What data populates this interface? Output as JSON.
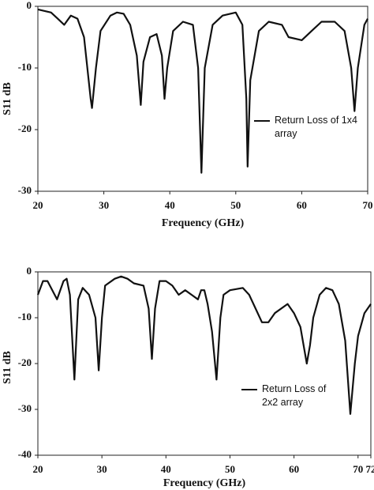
{
  "chart_data": [
    {
      "type": "line",
      "xlabel": "Frequency (GHz)",
      "ylabel": "S11 dB",
      "x": [
        20,
        22,
        23,
        24,
        25,
        26,
        27,
        28,
        28.2,
        28.8,
        29.5,
        31,
        32,
        33,
        34,
        35,
        35.6,
        36,
        37,
        38,
        38.8,
        39.2,
        39.6,
        40.5,
        42,
        43.5,
        44.3,
        44.8,
        45.3,
        46.5,
        48,
        50,
        51,
        51.6,
        51.8,
        52.2,
        53.5,
        55,
        57,
        58,
        60,
        61.5,
        63,
        65,
        66.5,
        67.5,
        68,
        68.5,
        69.5,
        70
      ],
      "series": [
        {
          "name": "Return Loss of 1x4 array",
          "color": "#111111",
          "values": [
            -0.5,
            -1,
            -2,
            -3,
            -1.5,
            -2,
            -5,
            -15,
            -16.5,
            -10,
            -4,
            -1.5,
            -1,
            -1.2,
            -3,
            -8,
            -16,
            -9,
            -5,
            -4.5,
            -8,
            -15,
            -10,
            -4,
            -2.5,
            -3,
            -10,
            -27,
            -10,
            -3,
            -1.5,
            -1,
            -3,
            -15,
            -26,
            -12,
            -4,
            -2.5,
            -3,
            -5,
            -5.5,
            -4,
            -2.5,
            -2.5,
            -4,
            -10,
            -17,
            -10,
            -3,
            -2
          ]
        }
      ],
      "xlim": [
        20,
        70
      ],
      "xticks": [
        20,
        30,
        40,
        50,
        60,
        70
      ],
      "ylim": [
        -30,
        0
      ],
      "yticks": [
        0,
        -10,
        -20,
        -30
      ]
    },
    {
      "type": "line",
      "xlabel": "Frequency (GHz)",
      "ylabel": "S11 dB",
      "x": [
        20,
        20.8,
        21.5,
        23,
        24,
        24.5,
        25,
        25.7,
        26.3,
        27,
        28,
        29,
        29.5,
        30,
        30.5,
        32,
        33,
        34,
        35,
        36.5,
        37.3,
        37.8,
        38.3,
        39,
        40,
        41,
        42,
        43,
        44,
        45,
        45.5,
        46,
        46.5,
        47.2,
        47.9,
        48.5,
        49,
        50,
        52,
        53,
        54,
        55,
        56,
        57,
        59,
        60,
        61,
        62,
        62.5,
        63,
        64,
        65,
        66,
        67,
        68,
        68.8,
        69.5,
        70,
        71,
        72
      ],
      "series": [
        {
          "name": "Return Loss of 2x2 array",
          "color": "#111111",
          "values": [
            -5,
            -2,
            -2,
            -6,
            -2,
            -1.5,
            -5,
            -23.5,
            -6,
            -3.5,
            -5,
            -10,
            -21.5,
            -10,
            -3,
            -1.5,
            -1,
            -1.5,
            -2.5,
            -3,
            -8,
            -19,
            -8,
            -2,
            -2,
            -3,
            -5,
            -4,
            -5,
            -6,
            -4,
            -4,
            -7,
            -13,
            -23.5,
            -10,
            -5,
            -4,
            -3.5,
            -5,
            -8,
            -11,
            -11,
            -9,
            -7,
            -9,
            -12,
            -20,
            -16,
            -10,
            -5,
            -3.5,
            -4,
            -7,
            -15,
            -31,
            -20,
            -14,
            -9,
            -7
          ]
        }
      ],
      "xlim": [
        20,
        72
      ],
      "xticks": [
        20,
        30,
        40,
        50,
        60,
        70,
        72
      ],
      "ylim": [
        -40,
        0
      ],
      "yticks": [
        0,
        -10,
        -20,
        -30,
        -40
      ]
    }
  ]
}
